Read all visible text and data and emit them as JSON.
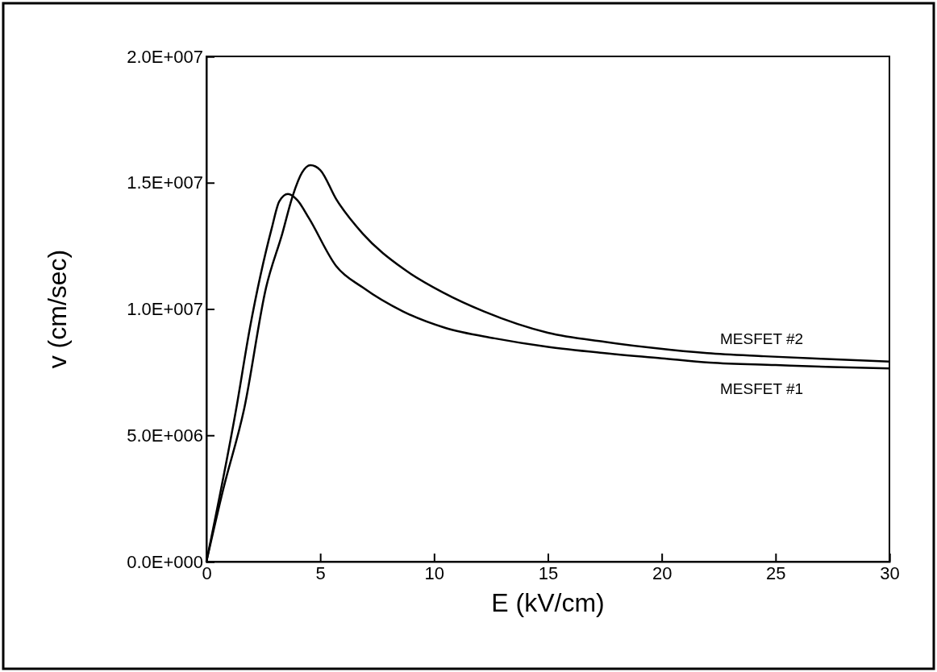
{
  "chart_data": {
    "type": "line",
    "xlabel": "E  (kV/cm)",
    "ylabel": "v  (cm/sec)",
    "xlim": [
      0,
      30
    ],
    "xticks": [
      0,
      5,
      10,
      15,
      20,
      25,
      30
    ],
    "ylim": [
      0,
      20000000
    ],
    "yticks": [
      {
        "value": 0,
        "label": "0.0E+000"
      },
      {
        "value": 5000000,
        "label": "5.0E+006"
      },
      {
        "value": 10000000,
        "label": "1.0E+007"
      },
      {
        "value": 15000000,
        "label": "1.5E+007"
      },
      {
        "value": 20000000,
        "label": "2.0E+007"
      }
    ],
    "grid": false,
    "legend": false,
    "marker": "none",
    "line_style": "solid",
    "series": [
      {
        "name": "MESFET #1",
        "color": "#000000",
        "x": [
          0,
          1.31,
          1.91,
          2.87,
          3.2,
          3.58,
          4.0,
          4.5,
          5.7,
          6.87,
          8.64,
          10.5,
          12.65,
          15,
          17.4,
          20,
          22.1,
          25,
          27.5,
          30
        ],
        "values": [
          0,
          6060000,
          9250000,
          13200000,
          14260000,
          14550000,
          14300000,
          13600000,
          11700000,
          10850000,
          9900000,
          9250000,
          8840000,
          8500000,
          8260000,
          8050000,
          7880000,
          7780000,
          7700000,
          7650000
        ]
      },
      {
        "name": "MESFET #2",
        "color": "#000000",
        "x": [
          0,
          0.74,
          1.66,
          2.62,
          3.33,
          3.79,
          4.2,
          4.57,
          5.0,
          5.7,
          6.87,
          8.64,
          10.4,
          12.2,
          15,
          17.5,
          19.7,
          22,
          24.5,
          27,
          30
        ],
        "values": [
          0,
          2870000,
          6060000,
          10850000,
          12980000,
          14480000,
          15400000,
          15690000,
          15500000,
          14350000,
          12980000,
          11600000,
          10650000,
          9900000,
          9060000,
          8700000,
          8450000,
          8250000,
          8130000,
          8030000,
          7920000
        ]
      }
    ]
  }
}
